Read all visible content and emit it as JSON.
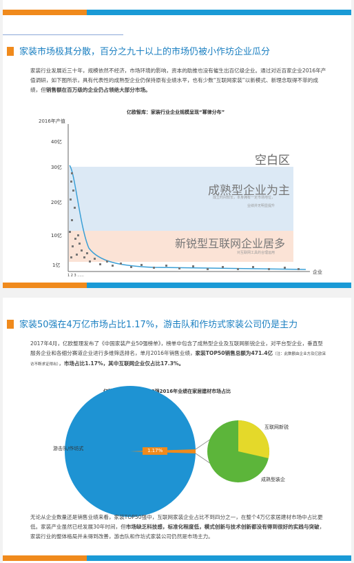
{
  "section1": {
    "heading": "家装市场极其分散，百分之九十以上的市场仍被小作坊企业瓜分",
    "paragraph": [
      "家装行业发展近三十年，规模依然不经济，市场环境的影响，资本的助推也没有催生出百亿级企业。通过对近百家企业2016年产值调研，如下图所示，具有代表性的成熟型企业仍保持原有业绩水平，也有少数“互联网家装”以新模式、新理念取得不菲的成绩，但",
      "销售额在百万级的企业仍占领绝大部分市场。"
    ],
    "figure": {
      "title": "亿欧智库：家装行业企业规模呈现“幂律分布”",
      "y_label": "2016年产值",
      "y_ticks": [
        "40亿",
        "30亿",
        "20亿",
        "10亿",
        "1亿"
      ],
      "x_ticks": "1 2 3 ......",
      "x_label": "企业",
      "zone_empty": "空白区",
      "zone_mature": "成熟型企业为主",
      "zone_mature_note": [
        "成立时间较长，本身拥有一定市场地位，",
        "业绩并无明显提升"
      ],
      "zone_internet": "新锐型互联网企业居多",
      "zone_internet_note": "对互联网工具的合理运用"
    }
  },
  "section2": {
    "heading": "家装50强在4万亿市场占比1.17%，游击队和作坊式家装公司仍是主力",
    "paragraph": [
      "2017年4月，亿欧整理发布了《中国家装产业50强榜单》，榜单中包含了成熟型企业及互联网新锐企业，对平台型企业，垂直型服务企业和各细分赛道企业进行多维筛选排名，单月2016年销售业绩，",
      "家装TOP50销售总额为471.4亿",
      "（注：此数额由企业方及亿欧采访不断求证得出）",
      "，",
      "市场占比1.17%",
      "，其中互联网企业仅占比17.3%。"
    ],
    "figure": {
      "title": "亿欧智库：家装TOP50强2016年业绩在家居建材市场占比",
      "label_guerrilla": "游击队/作坊式",
      "label_share": "1.17%",
      "label_internet": "互联网新锐",
      "label_mature": "成熟型装企"
    },
    "paragraph2": [
      "无论从企业数量还是销售业绩来看，家装TOP50强中，互联网家装企业占比不到四分之一，在整个4万亿家居建材市场中占比更低。家装产业虽然已经发展30年时间，但",
      "市场缺乏科技感，标准化程度低，模式创新与技术创新都没有得到很好的实践与突破",
      "，家装行业的整体格局并未得到改善，游击队和作坊式家装公司仍然是市场主力。"
    ]
  }
}
